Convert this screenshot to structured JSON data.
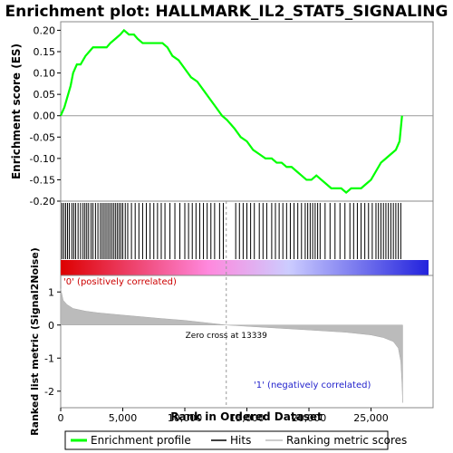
{
  "chart_data": {
    "type": "line",
    "title": "Enrichment plot: HALLMARK_IL2_STAT5_SIGNALING",
    "top_panel": {
      "ylabel": "Enrichment score (ES)",
      "ylim": [
        -0.2,
        0.22
      ],
      "yticks": [
        0.2,
        0.15,
        0.1,
        0.05,
        0.0,
        -0.05,
        -0.1,
        -0.15,
        -0.2
      ],
      "ytick_labels": [
        "0.20",
        "0.15",
        "0.10",
        "0.05",
        "0.00",
        "-0.05",
        "-0.10",
        "-0.15",
        "-0.20"
      ],
      "series": [
        {
          "name": "Enrichment profile",
          "color": "#00ff00",
          "x": [
            0,
            300,
            500,
            800,
            1000,
            1300,
            1600,
            2000,
            2300,
            2600,
            2900,
            3300,
            3700,
            4000,
            4400,
            4800,
            5100,
            5500,
            5900,
            6200,
            6600,
            7000,
            7400,
            7800,
            8200,
            8600,
            9000,
            9500,
            10000,
            10500,
            11000,
            11500,
            12000,
            12500,
            13000,
            13400,
            14000,
            14500,
            15000,
            15500,
            16000,
            16500,
            17000,
            17400,
            17800,
            18200,
            18600,
            19000,
            19400,
            19800,
            20200,
            20600,
            21000,
            21400,
            21800,
            22200,
            22600,
            23000,
            23400,
            23800,
            24200,
            24600,
            25000,
            25400,
            25800,
            26200,
            26600,
            27000,
            27300,
            27500
          ],
          "y": [
            0.0,
            0.02,
            0.04,
            0.07,
            0.1,
            0.12,
            0.12,
            0.14,
            0.15,
            0.16,
            0.16,
            0.16,
            0.16,
            0.17,
            0.18,
            0.19,
            0.2,
            0.19,
            0.19,
            0.18,
            0.17,
            0.17,
            0.17,
            0.17,
            0.17,
            0.16,
            0.14,
            0.13,
            0.11,
            0.09,
            0.08,
            0.06,
            0.04,
            0.02,
            0.0,
            -0.01,
            -0.03,
            -0.05,
            -0.06,
            -0.08,
            -0.09,
            -0.1,
            -0.1,
            -0.11,
            -0.11,
            -0.12,
            -0.12,
            -0.13,
            -0.14,
            -0.15,
            -0.15,
            -0.14,
            -0.15,
            -0.16,
            -0.17,
            -0.17,
            -0.17,
            -0.18,
            -0.17,
            -0.17,
            -0.17,
            -0.16,
            -0.15,
            -0.13,
            -0.11,
            -0.1,
            -0.09,
            -0.08,
            -0.06,
            0.0
          ]
        }
      ]
    },
    "hits_panel": {
      "series_name": "Hits",
      "hit_positions": [
        100,
        250,
        400,
        550,
        700,
        900,
        1050,
        1200,
        1400,
        1600,
        1800,
        1950,
        2100,
        2250,
        2450,
        2600,
        2800,
        3000,
        3200,
        3350,
        3500,
        3650,
        3800,
        3950,
        4100,
        4250,
        4400,
        4550,
        4700,
        4850,
        5000,
        5200,
        5400,
        5700,
        6000,
        6300,
        6600,
        6900,
        7200,
        7500,
        7800,
        8100,
        8400,
        8800,
        9200,
        9600,
        10000,
        10300,
        10600,
        10900,
        11200,
        11500,
        11800,
        12100,
        12400,
        12800,
        13100,
        14100,
        14400,
        14700,
        15000,
        15300,
        15600,
        16000,
        16300,
        16600,
        17000,
        17300,
        17600,
        17900,
        18200,
        18500,
        18800,
        19100,
        19400,
        19700,
        19900,
        20100,
        20300,
        20500,
        20700,
        20900,
        21300,
        21700,
        22100,
        22500,
        22900,
        23300,
        23600,
        23900,
        24200,
        24500,
        24800,
        25100,
        25400,
        25600,
        25800,
        26000,
        26200,
        26400,
        26600,
        26800,
        27000,
        27200,
        27400
      ],
      "gradient_colors": [
        "#dd0000",
        "#ff88dd",
        "#ccccff",
        "#2222dd"
      ]
    },
    "rank_panel": {
      "ylabel": "Ranked list metric (Signal2Noise)",
      "xlabel": "Rank in Ordered Dataset",
      "xlim": [
        0,
        30000
      ],
      "xticks": [
        0,
        5000,
        10000,
        15000,
        20000,
        25000
      ],
      "xtick_labels": [
        "0",
        "5,000",
        "10,000",
        "15,000",
        "20,000",
        "25,000"
      ],
      "ylim": [
        -2.5,
        1.5
      ],
      "yticks": [
        1,
        0,
        -1,
        -2
      ],
      "ytick_labels": [
        "1",
        "0",
        "-1",
        "-2"
      ],
      "series_name": "Ranking metric scores",
      "x": [
        0,
        200,
        500,
        1000,
        2000,
        3000,
        5000,
        8000,
        10000,
        13339,
        16000,
        20000,
        23000,
        25000,
        26000,
        26800,
        27200,
        27400,
        27500,
        27550
      ],
      "y": [
        1.1,
        0.75,
        0.62,
        0.5,
        0.42,
        0.37,
        0.3,
        0.2,
        0.14,
        0.0,
        -0.06,
        -0.15,
        -0.22,
        -0.3,
        -0.38,
        -0.5,
        -0.7,
        -1.1,
        -1.8,
        -2.35
      ],
      "zero_cross_label": "Zero cross at 13339",
      "zero_cross": 13339,
      "pos_label": "'0' (positively correlated)",
      "neg_label": "'1' (negatively correlated)"
    },
    "legend": [
      {
        "name": "Enrichment profile",
        "color": "#00ff00"
      },
      {
        "name": "Hits",
        "color": "#000000"
      },
      {
        "name": "Ranking metric scores",
        "color": "#bbbbbb"
      }
    ]
  }
}
